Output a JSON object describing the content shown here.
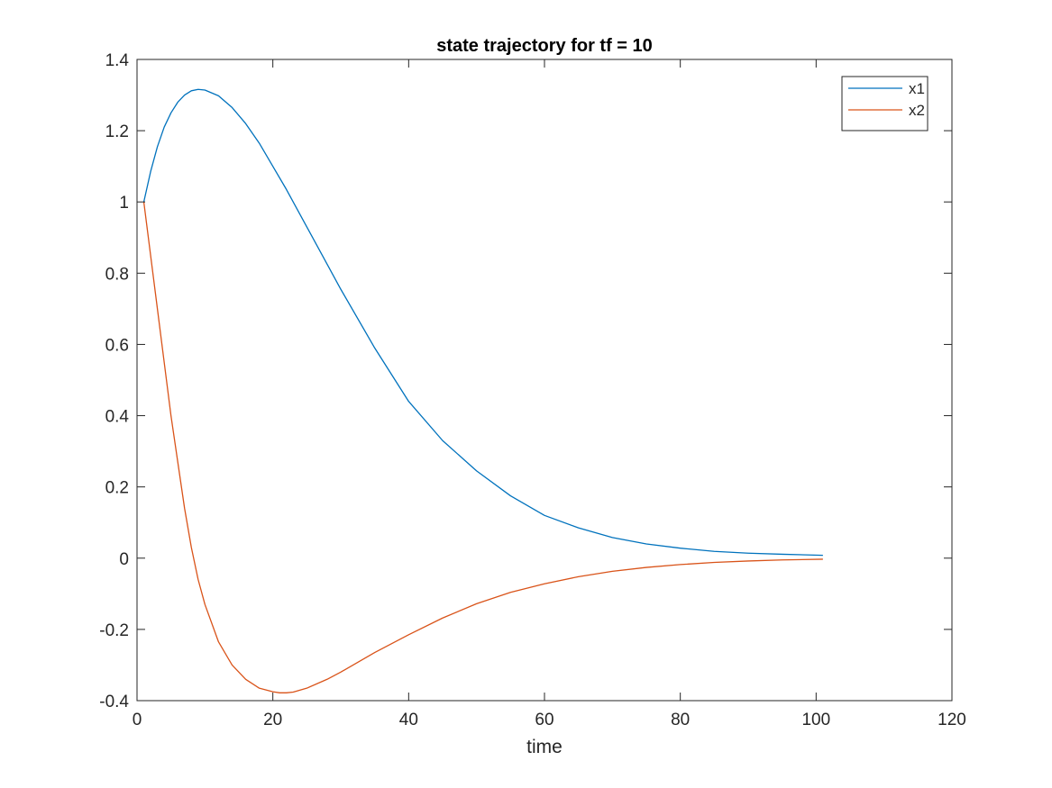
{
  "chart_data": {
    "type": "line",
    "title": "state trajectory for tf = 10",
    "xlabel": "time",
    "ylabel": "",
    "xlim": [
      0,
      120
    ],
    "ylim": [
      -0.4,
      1.4
    ],
    "xticks": [
      0,
      20,
      40,
      60,
      80,
      100,
      120
    ],
    "yticks": [
      -0.4,
      -0.2,
      0,
      0.2,
      0.4,
      0.6,
      0.8,
      1,
      1.2,
      1.4
    ],
    "xtick_labels": [
      "0",
      "20",
      "40",
      "60",
      "80",
      "100",
      "120"
    ],
    "ytick_labels": [
      "-0.4",
      "-0.2",
      "0",
      "0.2",
      "0.4",
      "0.6",
      "0.8",
      "1",
      "1.2",
      "1.4"
    ],
    "grid": false,
    "legend_position": "top-right",
    "series": [
      {
        "name": "x1",
        "color": "#0072BD",
        "x": [
          1,
          2,
          3,
          4,
          5,
          6,
          7,
          8,
          9,
          10,
          12,
          14,
          16,
          18,
          20,
          22,
          25,
          28,
          30,
          35,
          40,
          45,
          50,
          55,
          60,
          65,
          70,
          75,
          80,
          85,
          90,
          95,
          101
        ],
        "y": [
          1.0,
          1.085,
          1.155,
          1.21,
          1.25,
          1.28,
          1.3,
          1.312,
          1.316,
          1.314,
          1.298,
          1.265,
          1.22,
          1.165,
          1.1,
          1.035,
          0.93,
          0.825,
          0.755,
          0.59,
          0.44,
          0.33,
          0.245,
          0.175,
          0.12,
          0.085,
          0.058,
          0.04,
          0.028,
          0.019,
          0.014,
          0.011,
          0.008
        ]
      },
      {
        "name": "x2",
        "color": "#D95319",
        "x": [
          1,
          2,
          3,
          4,
          5,
          6,
          7,
          8,
          9,
          10,
          12,
          14,
          16,
          18,
          20,
          21,
          22,
          23,
          25,
          28,
          30,
          35,
          40,
          45,
          50,
          55,
          60,
          65,
          70,
          75,
          80,
          85,
          90,
          95,
          101
        ],
        "y": [
          1.0,
          0.85,
          0.7,
          0.55,
          0.4,
          0.27,
          0.14,
          0.03,
          -0.06,
          -0.13,
          -0.235,
          -0.3,
          -0.34,
          -0.365,
          -0.375,
          -0.378,
          -0.378,
          -0.376,
          -0.365,
          -0.34,
          -0.32,
          -0.265,
          -0.215,
          -0.168,
          -0.128,
          -0.096,
          -0.072,
          -0.052,
          -0.037,
          -0.026,
          -0.018,
          -0.012,
          -0.008,
          -0.005,
          -0.003
        ]
      }
    ]
  }
}
